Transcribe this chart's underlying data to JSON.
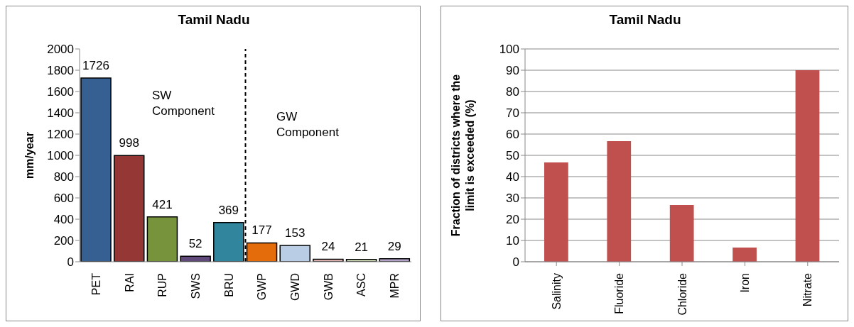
{
  "chart_data": [
    {
      "type": "bar",
      "title": "Tamil Nadu",
      "ylabel": "mm/year",
      "categories": [
        "PET",
        "RAI",
        "RUP",
        "SWS",
        "BRU",
        "GWP",
        "GWD",
        "GWB",
        "ASC",
        "MPR"
      ],
      "values": [
        1726,
        998,
        421,
        52,
        369,
        177,
        153,
        24,
        21,
        29
      ],
      "colors": [
        "#376092",
        "#953735",
        "#77933c",
        "#604a7b",
        "#31859c",
        "#e46c0a",
        "#b9cde5",
        "#e6b9b8",
        "#d7e4bd",
        "#b3a2c7"
      ],
      "ylim": [
        0,
        2000
      ],
      "yticks": [
        0,
        200,
        400,
        600,
        800,
        1000,
        1200,
        1400,
        1600,
        1800,
        2000
      ],
      "data_labels": true,
      "grid": false,
      "annotations": [
        "SW Component",
        "GW Component"
      ]
    },
    {
      "type": "bar",
      "title": "Tamil Nadu",
      "ylabel": "Fraction of districts where the limit is exceeded (%)",
      "categories": [
        "Salinity",
        "Fluoride",
        "Chloride",
        "Iron",
        "Nitrate"
      ],
      "values": [
        46.7,
        56.7,
        26.7,
        6.7,
        90
      ],
      "color": "#c0504d",
      "ylim": [
        0,
        100
      ],
      "yticks": [
        0,
        10,
        20,
        30,
        40,
        50,
        60,
        70,
        80,
        90,
        100
      ],
      "grid": "y"
    }
  ]
}
